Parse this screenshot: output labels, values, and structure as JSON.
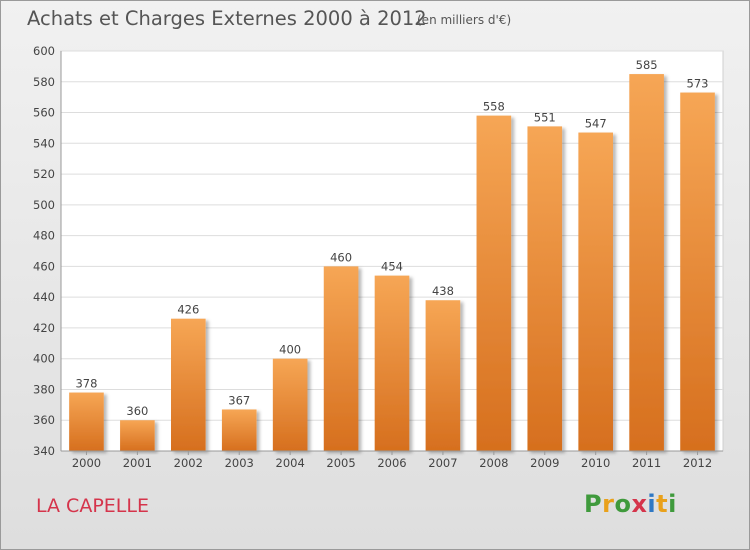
{
  "header": {
    "title": "Achats et Charges Externes 2000 à 2012",
    "subtitle": "(en milliers d'€)"
  },
  "footer": {
    "commune": "LA CAPELLE",
    "logo": [
      "P",
      "r",
      "o",
      "x",
      "i",
      "t",
      "i"
    ]
  },
  "colors": {
    "bar_top": "#f6a655",
    "bar_bottom": "#d66f1e",
    "commune_text": "#d5344b",
    "logo_letters": [
      "#3f9a3c",
      "#e9a11b",
      "#3f9a3c",
      "#d5344b",
      "#2f78c4",
      "#e9a11b",
      "#3f9a3c"
    ]
  },
  "chart_data": {
    "type": "bar",
    "title": "Achats et Charges Externes 2000 à 2012",
    "subtitle": "(en milliers d'€)",
    "categories": [
      "2000",
      "2001",
      "2002",
      "2003",
      "2004",
      "2005",
      "2006",
      "2007",
      "2008",
      "2009",
      "2010",
      "2011",
      "2012"
    ],
    "values": [
      378,
      360,
      426,
      367,
      400,
      460,
      454,
      438,
      558,
      551,
      547,
      585,
      573
    ],
    "ylim": [
      340,
      600
    ],
    "yticks": [
      340,
      360,
      380,
      400,
      420,
      440,
      460,
      480,
      500,
      520,
      540,
      560,
      580,
      600
    ],
    "grid": true,
    "legend": "none"
  }
}
